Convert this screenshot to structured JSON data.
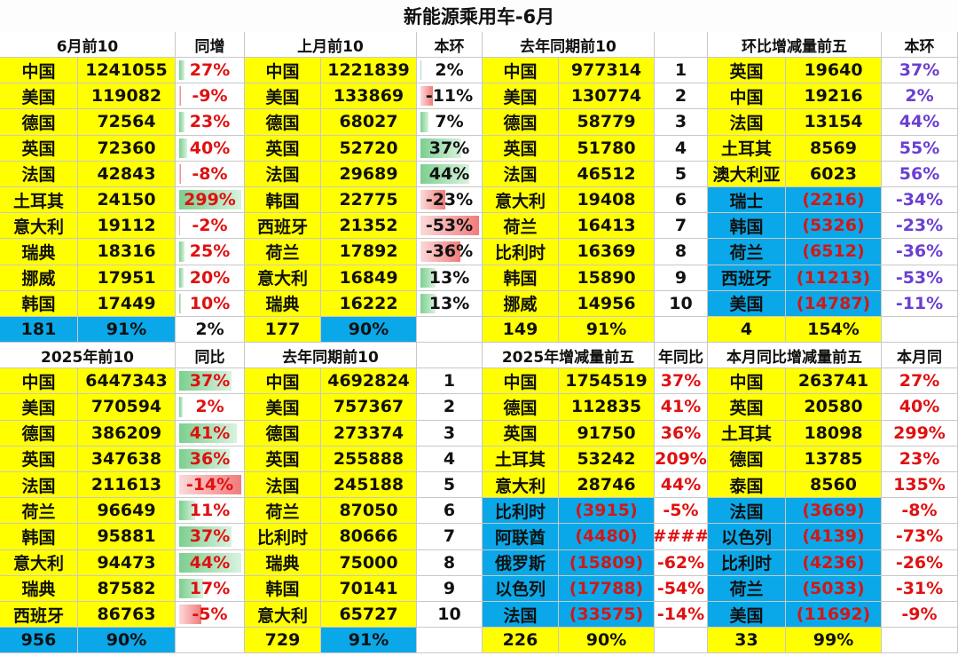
{
  "title": "新能源乘用车-6月",
  "colors": {
    "yellow": "#ffff00",
    "blue": "#0aa8e8",
    "red_text": "#e01010",
    "purple_text": "#6a3fd0",
    "bar_pos": "#7ccf8e",
    "bar_neg": "#f27b7b"
  },
  "top": {
    "headers": [
      "6月前10",
      "同增",
      "上月前10",
      "本环",
      "去年同期前10",
      "",
      "环比增减量前五",
      "本环"
    ],
    "rows": [
      [
        "中国",
        "1241055",
        "27%",
        "中国",
        "1221839",
        "2%",
        "中国",
        "977314",
        "1",
        "英国",
        "19640",
        "37%"
      ],
      [
        "美国",
        "119082",
        "-9%",
        "美国",
        "133869",
        "-11%",
        "美国",
        "130774",
        "2",
        "中国",
        "19216",
        "2%"
      ],
      [
        "德国",
        "72564",
        "23%",
        "德国",
        "68027",
        "7%",
        "德国",
        "58779",
        "3",
        "法国",
        "13154",
        "44%"
      ],
      [
        "英国",
        "72360",
        "40%",
        "英国",
        "52720",
        "37%",
        "英国",
        "51780",
        "4",
        "土耳其",
        "8569",
        "55%"
      ],
      [
        "法国",
        "42843",
        "-8%",
        "法国",
        "29689",
        "44%",
        "法国",
        "46512",
        "5",
        "澳大利亚",
        "6023",
        "56%"
      ],
      [
        "土耳其",
        "24150",
        "299%",
        "韩国",
        "22775",
        "-23%",
        "意大利",
        "19408",
        "6",
        "瑞士",
        "(2216)",
        "-34%"
      ],
      [
        "意大利",
        "19112",
        "-2%",
        "西班牙",
        "21352",
        "-53%",
        "荷兰",
        "16413",
        "7",
        "韩国",
        "(5326)",
        "-23%"
      ],
      [
        "瑞典",
        "18316",
        "25%",
        "荷兰",
        "17892",
        "-36%",
        "比利时",
        "16369",
        "8",
        "荷兰",
        "(6512)",
        "-36%"
      ],
      [
        "挪威",
        "17951",
        "20%",
        "意大利",
        "16849",
        "13%",
        "韩国",
        "15890",
        "9",
        "西班牙",
        "(11213)",
        "-53%"
      ],
      [
        "韩国",
        "17449",
        "10%",
        "瑞典",
        "16222",
        "13%",
        "挪威",
        "14956",
        "10",
        "美国",
        "(14787)",
        "-11%"
      ]
    ],
    "summary": [
      "181",
      "91%",
      "2%",
      "177",
      "90%",
      "",
      "149",
      "91%",
      "",
      "4",
      "154%",
      ""
    ]
  },
  "bottom": {
    "headers": [
      "2025年前10",
      "同比",
      "去年同期前10",
      "",
      "2025年增减量前五",
      "年同比",
      "本月同比增减量前五",
      "本月同"
    ],
    "rows": [
      [
        "中国",
        "6447343",
        "37%",
        "中国",
        "4692824",
        "1",
        "中国",
        "1754519",
        "37%",
        "中国",
        "263741",
        "27%"
      ],
      [
        "美国",
        "770594",
        "2%",
        "美国",
        "757367",
        "2",
        "德国",
        "112835",
        "41%",
        "英国",
        "20580",
        "40%"
      ],
      [
        "德国",
        "386209",
        "41%",
        "德国",
        "273374",
        "3",
        "英国",
        "91750",
        "36%",
        "土耳其",
        "18098",
        "299%"
      ],
      [
        "英国",
        "347638",
        "36%",
        "英国",
        "255888",
        "4",
        "土耳其",
        "53242",
        "209%",
        "德国",
        "13785",
        "23%"
      ],
      [
        "法国",
        "211613",
        "-14%",
        "法国",
        "245188",
        "5",
        "意大利",
        "28746",
        "44%",
        "泰国",
        "8560",
        "135%"
      ],
      [
        "荷兰",
        "96649",
        "11%",
        "荷兰",
        "87050",
        "6",
        "比利时",
        "(3915)",
        "-5%",
        "法国",
        "(3669)",
        "-8%"
      ],
      [
        "韩国",
        "95881",
        "37%",
        "比利时",
        "80666",
        "7",
        "阿联酋",
        "(4480)",
        "####",
        "以色列",
        "(4139)",
        "-73%"
      ],
      [
        "意大利",
        "94473",
        "44%",
        "瑞典",
        "75000",
        "8",
        "俄罗斯",
        "(15809)",
        "-62%",
        "比利时",
        "(4236)",
        "-26%"
      ],
      [
        "瑞典",
        "87582",
        "17%",
        "韩国",
        "70141",
        "9",
        "以色列",
        "(17788)",
        "-54%",
        "荷兰",
        "(5033)",
        "-31%"
      ],
      [
        "西班牙",
        "86763",
        "-5%",
        "意大利",
        "65727",
        "10",
        "法国",
        "(33575)",
        "-14%",
        "美国",
        "(11692)",
        "-9%"
      ]
    ],
    "summary": [
      "956",
      "90%",
      "",
      "729",
      "91%",
      "",
      "226",
      "90%",
      "",
      "33",
      "99%",
      ""
    ]
  },
  "bars": {
    "top_col2": [
      0.09,
      -0.03,
      0.08,
      0.13,
      -0.03,
      1.0,
      -0.01,
      0.08,
      0.07,
      0.03
    ],
    "top_col5": [
      0.01,
      -0.21,
      0.13,
      0.7,
      0.83,
      -0.43,
      -1.0,
      -0.68,
      0.25,
      0.25
    ],
    "bottom_col2": [
      0.84,
      0.05,
      0.93,
      0.82,
      -1.0,
      0.25,
      0.84,
      1.0,
      0.39,
      -0.36
    ]
  }
}
